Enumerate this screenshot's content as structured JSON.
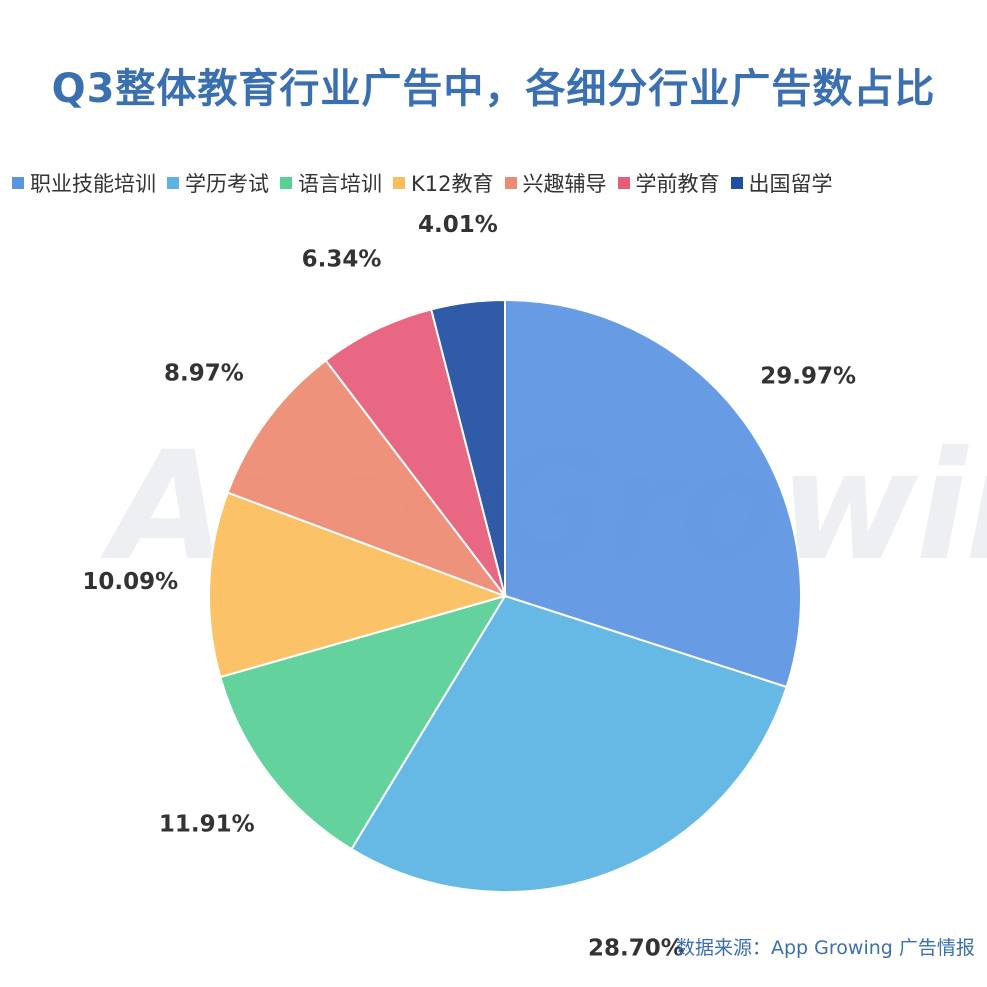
{
  "page": {
    "title": "Q3整体教育行业广告中，各细分行业广告数占比",
    "source": "数据来源：App Growing 广告情报",
    "watermark": "App Growing"
  },
  "colors": {
    "title": "#3a6fb0",
    "source": "#3a6fb0"
  },
  "chart_data": {
    "type": "pie",
    "title": "Q3整体教育行业广告中，各细分行业广告数占比",
    "legend_position": "top",
    "start_angle": "12 o'clock",
    "direction": "clockwise",
    "slices": [
      {
        "name": "职业技能培训",
        "value": 29.97,
        "label": "29.97%",
        "color": "#5b95e2"
      },
      {
        "name": "学历考试",
        "value": 28.7,
        "label": "28.70%",
        "color": "#5bb4e3"
      },
      {
        "name": "语言培训",
        "value": 11.91,
        "label": "11.91%",
        "color": "#57cf95"
      },
      {
        "name": "K12教育",
        "value": 10.09,
        "label": "10.09%",
        "color": "#fbbd5c"
      },
      {
        "name": "兴趣辅导",
        "value": 8.97,
        "label": "8.97%",
        "color": "#ed8a72"
      },
      {
        "name": "学前教育",
        "value": 6.34,
        "label": "6.34%",
        "color": "#e65d7a"
      },
      {
        "name": "出国留学",
        "value": 4.01,
        "label": "4.01%",
        "color": "#1f4fa3"
      }
    ]
  }
}
